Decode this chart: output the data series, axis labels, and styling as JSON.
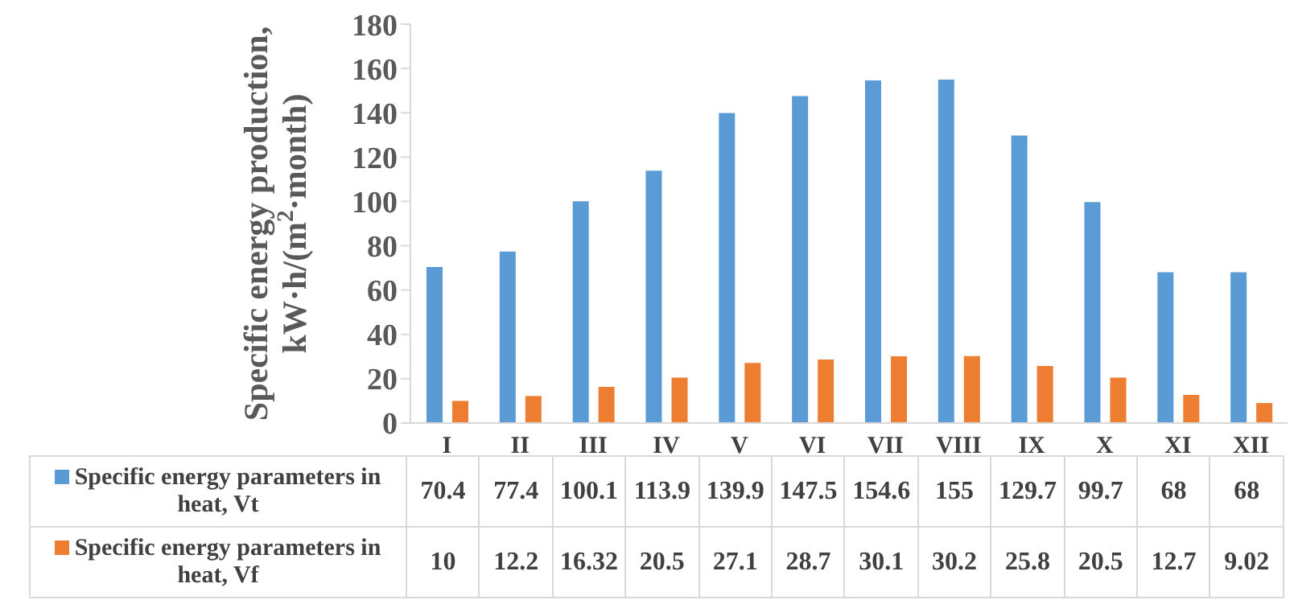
{
  "chart_data": {
    "type": "bar",
    "ylabel": "Specific energy production, kW·h/(m$^{2}$·month)",
    "categories": [
      "I",
      "II",
      "III",
      "IV",
      "V",
      "VI",
      "VII",
      "VIII",
      "IX",
      "X",
      "XI",
      "XII"
    ],
    "series": [
      {
        "name": "Specific energy parameters in heat, Vt",
        "color": "#5b9bd5",
        "values": [
          70.4,
          77.4,
          100.1,
          113.9,
          139.9,
          147.5,
          154.6,
          155,
          129.7,
          99.7,
          68,
          68
        ]
      },
      {
        "name": "Specific energy parameters in heat, Vf",
        "color": "#ed7d31",
        "values": [
          10,
          12.2,
          16.32,
          20.5,
          27.1,
          28.7,
          30.1,
          30.2,
          25.8,
          20.5,
          12.7,
          9.02
        ]
      }
    ],
    "ylim": [
      0,
      180
    ],
    "yticks": [
      0,
      20,
      40,
      60,
      80,
      100,
      120,
      140,
      160,
      180
    ],
    "grid": false,
    "legend": "bottom",
    "data_labels": true
  }
}
